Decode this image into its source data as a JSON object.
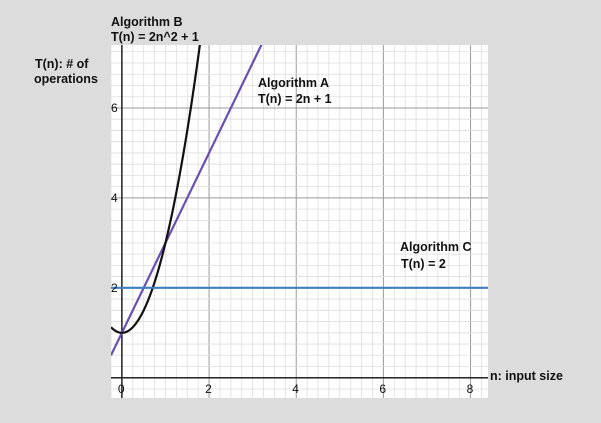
{
  "chart_data": {
    "type": "line",
    "xlabel": "n: input size",
    "ylabel_lines": [
      "T(n): # of",
      "operations"
    ],
    "xlim": [
      -0.25,
      8.4
    ],
    "ylim": [
      -0.45,
      7.4
    ],
    "x_ticks": [
      0,
      2,
      4,
      6,
      8
    ],
    "y_ticks": [
      2,
      4,
      6
    ],
    "grid": true,
    "series": [
      {
        "name": "Algorithm A",
        "formula": "T(n) = 2n + 1",
        "color": "#6a4fb5",
        "expr": "linear",
        "a": 2,
        "b": 1
      },
      {
        "name": "Algorithm B",
        "formula": "T(n) = 2n^2 + 1",
        "color": "#111111",
        "expr": "quadratic",
        "a": 2,
        "b": 1
      },
      {
        "name": "Algorithm C",
        "formula": "T(n) = 2",
        "color": "#3f7fbf",
        "expr": "constant",
        "b": 2
      }
    ]
  }
}
